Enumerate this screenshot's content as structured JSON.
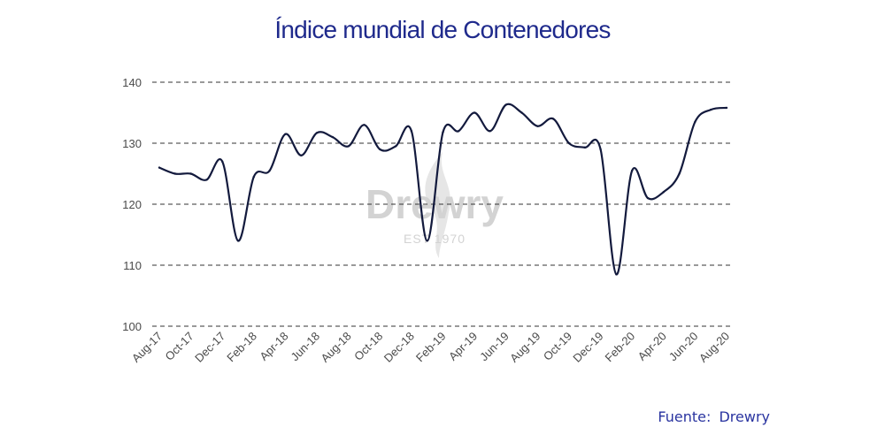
{
  "title": "Índice mundial de Contenedores",
  "source": "Fuente:  Drewry",
  "watermark": {
    "name": "Drewry",
    "est": "EST 1970"
  },
  "colors": {
    "title": "#1f2a8c",
    "line": "#131a3d",
    "grid": "#333333",
    "source": "#2a34a0"
  },
  "chart_data": {
    "type": "line",
    "title": "Índice mundial de Contenedores",
    "xlabel": "",
    "ylabel": "",
    "ylim": [
      100,
      140
    ],
    "yticks": [
      100,
      110,
      120,
      130,
      140
    ],
    "grid": "horizontal dashed",
    "x": [
      "Aug-17",
      "Sep-17",
      "Oct-17",
      "Nov-17",
      "Dec-17",
      "Jan-18",
      "Feb-18",
      "Mar-18",
      "Apr-18",
      "May-18",
      "Jun-18",
      "Jul-18",
      "Aug-18",
      "Sep-18",
      "Oct-18",
      "Nov-18",
      "Dec-18",
      "Jan-19",
      "Feb-19",
      "Mar-19",
      "Apr-19",
      "May-19",
      "Jun-19",
      "Jul-19",
      "Aug-19",
      "Sep-19",
      "Oct-19",
      "Nov-19",
      "Dec-19",
      "Jan-20",
      "Feb-20",
      "Mar-20",
      "Apr-20",
      "May-20",
      "Jun-20",
      "Jul-20",
      "Aug-20"
    ],
    "xticklabels": [
      "Aug-17",
      "Oct-17",
      "Dec-17",
      "Feb-18",
      "Apr-18",
      "Jun-18",
      "Aug-18",
      "Oct-18",
      "Dec-18",
      "Feb-19",
      "Apr-19",
      "Jun-19",
      "Aug-19",
      "Oct-19",
      "Dec-19",
      "Feb-20",
      "Apr-20",
      "Jun-20",
      "Aug-20"
    ],
    "series": [
      {
        "values": [
          126,
          125,
          125,
          124,
          127,
          114,
          124.5,
          125.5,
          131.5,
          128,
          131.7,
          131,
          129.5,
          133,
          129,
          129.5,
          132,
          114,
          131.8,
          132,
          135,
          132,
          136.3,
          135,
          132.8,
          134,
          130,
          129.3,
          129,
          108.5,
          125.5,
          121,
          122,
          125,
          133.5,
          135.5,
          135.8
        ]
      }
    ]
  }
}
